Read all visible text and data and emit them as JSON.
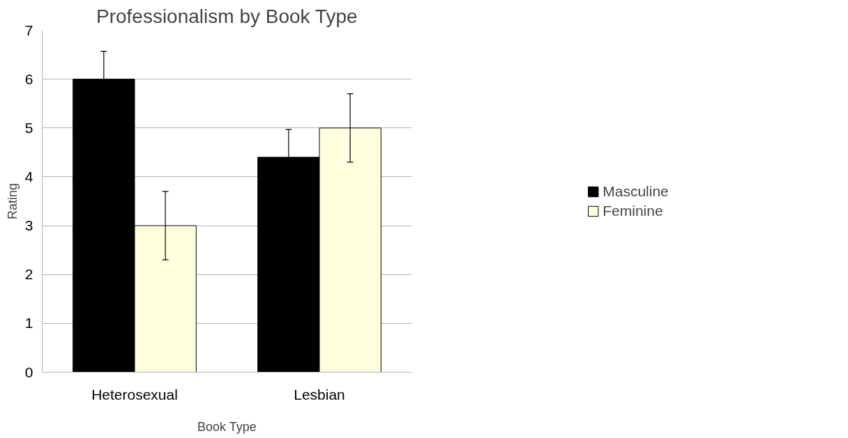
{
  "chart_data": {
    "type": "bar",
    "title": "Professionalism by Book Type",
    "xlabel": "Book Type",
    "ylabel": "Rating",
    "categories": [
      "Heterosexual",
      "Lesbian"
    ],
    "series": [
      {
        "name": "Masculine",
        "color": "#000000",
        "values": [
          6,
          4.4
        ],
        "errors": [
          0.57,
          0.57
        ]
      },
      {
        "name": "Feminine",
        "color": "#ffffe0",
        "values": [
          3,
          5
        ],
        "errors": [
          0.7,
          0.7
        ]
      }
    ],
    "ylim": [
      0,
      7
    ],
    "yticks": [
      0,
      1,
      2,
      3,
      4,
      5,
      6,
      7
    ],
    "grid": "y",
    "legend": "right"
  }
}
